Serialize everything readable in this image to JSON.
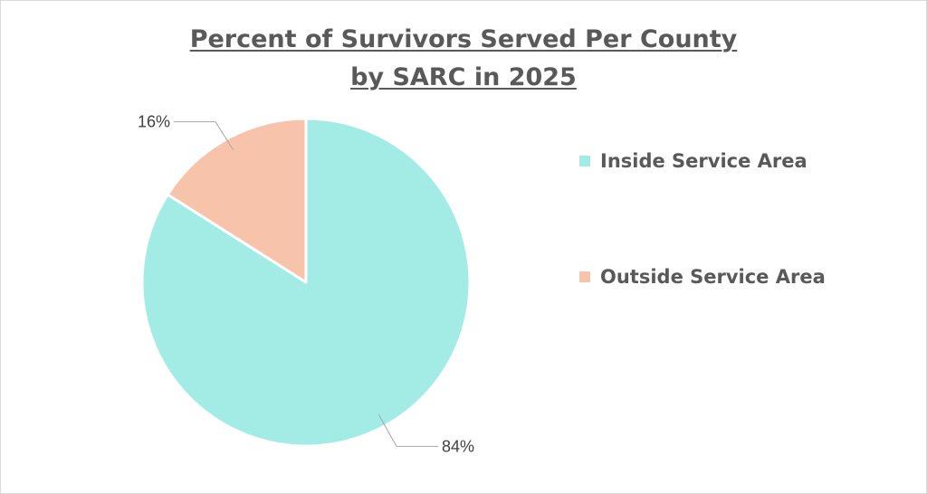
{
  "chart_data": {
    "type": "pie",
    "title_lines": [
      "Percent of Survivors Served Per County",
      "by SARC in 2025"
    ],
    "categories": [
      "Inside Service Area",
      "Outside Service Area"
    ],
    "values": [
      84,
      16
    ],
    "data_labels": [
      "84%",
      "16%"
    ],
    "colors": [
      "#a3ebe5",
      "#f7c4ab"
    ],
    "legend_position": "right"
  }
}
